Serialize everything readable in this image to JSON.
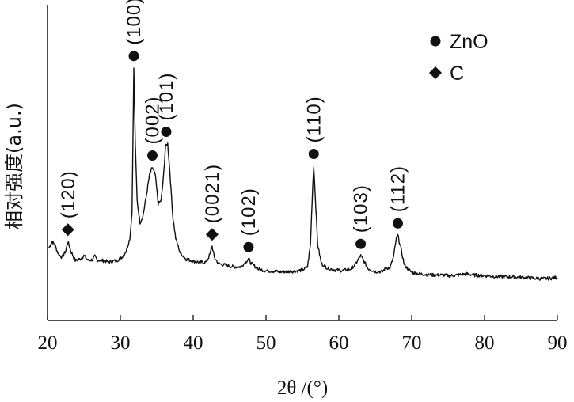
{
  "chart_data": {
    "type": "line",
    "xlabel": "2θ /(°)",
    "ylabel": "相对强度(a.u.)",
    "xlim": [
      20,
      90
    ],
    "ylim": [
      0,
      100
    ],
    "xticks": [
      20,
      30,
      40,
      50,
      60,
      70,
      80,
      90
    ],
    "legend": {
      "placement": "top-right",
      "entries": [
        {
          "marker": "circle",
          "label": "ZnO"
        },
        {
          "marker": "diamond",
          "label": "C"
        }
      ]
    },
    "series": [
      {
        "points": [
          [
            20.2,
            23
          ],
          [
            20.6,
            25
          ],
          [
            21.0,
            24
          ],
          [
            21.5,
            21
          ],
          [
            22.0,
            20
          ],
          [
            22.5,
            22
          ],
          [
            22.8,
            25
          ],
          [
            23.2,
            22
          ],
          [
            23.8,
            19
          ],
          [
            24.5,
            19.5
          ],
          [
            25.0,
            20.5
          ],
          [
            25.6,
            19
          ],
          [
            26.2,
            19.3
          ],
          [
            26.5,
            20.3
          ],
          [
            26.8,
            19.2
          ],
          [
            27.5,
            19
          ],
          [
            28.5,
            18.6
          ],
          [
            29.5,
            19
          ],
          [
            30.2,
            20
          ],
          [
            30.8,
            22
          ],
          [
            31.3,
            26
          ],
          [
            31.6,
            34
          ],
          [
            31.85,
            80
          ],
          [
            32.05,
            56
          ],
          [
            32.3,
            38
          ],
          [
            32.7,
            31
          ],
          [
            33.1,
            33
          ],
          [
            33.6,
            40
          ],
          [
            34.0,
            46
          ],
          [
            34.4,
            48.5
          ],
          [
            34.8,
            46
          ],
          [
            35.2,
            37
          ],
          [
            35.6,
            38
          ],
          [
            35.9,
            45
          ],
          [
            36.2,
            55
          ],
          [
            36.5,
            56
          ],
          [
            36.8,
            47
          ],
          [
            37.2,
            33
          ],
          [
            37.6,
            26
          ],
          [
            38.2,
            21.5
          ],
          [
            39.0,
            19.5
          ],
          [
            40.0,
            18.8
          ],
          [
            41.0,
            18.4
          ],
          [
            41.8,
            18.5
          ],
          [
            42.3,
            21
          ],
          [
            42.6,
            23.5
          ],
          [
            42.9,
            20
          ],
          [
            43.5,
            18
          ],
          [
            44.5,
            17.5
          ],
          [
            45.5,
            17
          ],
          [
            46.5,
            17
          ],
          [
            47.2,
            18.5
          ],
          [
            47.6,
            19.5
          ],
          [
            48.0,
            18
          ],
          [
            49.0,
            16.2
          ],
          [
            50.0,
            15.8
          ],
          [
            51.0,
            15.6
          ],
          [
            52.0,
            15.4
          ],
          [
            53.0,
            15.5
          ],
          [
            54.0,
            15.6
          ],
          [
            55.0,
            16
          ],
          [
            55.7,
            17
          ],
          [
            56.1,
            24
          ],
          [
            56.4,
            42
          ],
          [
            56.55,
            49
          ],
          [
            56.75,
            40
          ],
          [
            57.1,
            24
          ],
          [
            57.6,
            18
          ],
          [
            58.5,
            16.5
          ],
          [
            59.5,
            16
          ],
          [
            60.5,
            15.8
          ],
          [
            61.5,
            16.2
          ],
          [
            62.2,
            17.5
          ],
          [
            62.7,
            19.5
          ],
          [
            63.0,
            20.5
          ],
          [
            63.4,
            19
          ],
          [
            64.0,
            16.5
          ],
          [
            65.0,
            15.5
          ],
          [
            66.0,
            15.5
          ],
          [
            66.5,
            16.8
          ],
          [
            67.0,
            16.5
          ],
          [
            67.5,
            20
          ],
          [
            67.9,
            26
          ],
          [
            68.1,
            27
          ],
          [
            68.5,
            23
          ],
          [
            69.0,
            17.5
          ],
          [
            70.0,
            15.2
          ],
          [
            71.0,
            14.8
          ],
          [
            72.0,
            14.6
          ],
          [
            73.0,
            14.4
          ],
          [
            74.0,
            14.4
          ],
          [
            75.0,
            14.2
          ],
          [
            76.0,
            14.3
          ],
          [
            77.0,
            14.6
          ],
          [
            77.5,
            14.8
          ],
          [
            78.5,
            14.4
          ],
          [
            80.0,
            14.2
          ],
          [
            82.0,
            13.9
          ],
          [
            84.0,
            13.8
          ],
          [
            86.0,
            13.5
          ],
          [
            88.0,
            13.2
          ],
          [
            90.0,
            13.6
          ]
        ]
      }
    ],
    "peaks": [
      {
        "label": "(120)",
        "x": 22.8,
        "y": 25,
        "phase": "C"
      },
      {
        "label": "(100)",
        "x": 31.85,
        "y": 80,
        "phase": "ZnO"
      },
      {
        "label": "(002)",
        "x": 34.4,
        "y": 48.5,
        "phase": "ZnO"
      },
      {
        "label": "(101)",
        "x": 36.3,
        "y": 56,
        "phase": "ZnO"
      },
      {
        "label": "(0021)",
        "x": 42.6,
        "y": 23.5,
        "phase": "C"
      },
      {
        "label": "(102)",
        "x": 47.6,
        "y": 19.5,
        "phase": "ZnO"
      },
      {
        "label": "(110)",
        "x": 56.55,
        "y": 49,
        "phase": "ZnO"
      },
      {
        "label": "(103)",
        "x": 63.0,
        "y": 20.5,
        "phase": "ZnO"
      },
      {
        "label": "(112)",
        "x": 68.1,
        "y": 27,
        "phase": "ZnO"
      }
    ]
  }
}
